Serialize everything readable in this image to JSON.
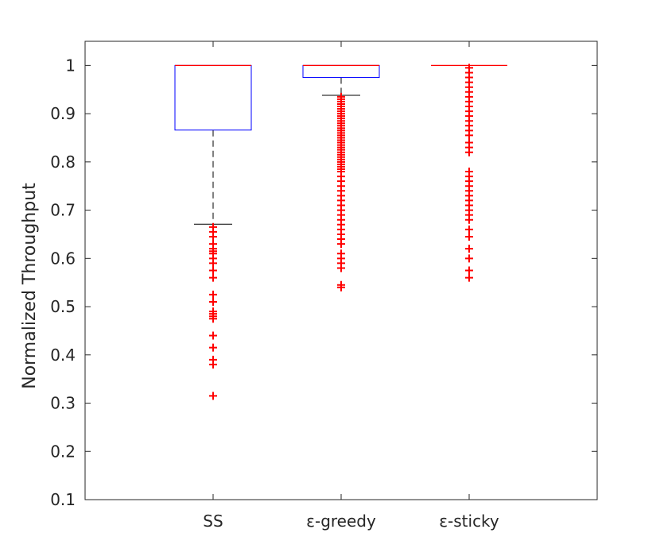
{
  "chart_data": {
    "type": "boxplot",
    "title": "",
    "xlabel": "",
    "ylabel": "Normalized Throughput",
    "ylim": [
      0.1,
      1.05
    ],
    "yticks": [
      0.1,
      0.2,
      0.3,
      0.4,
      0.5,
      0.6,
      0.7,
      0.8,
      0.9,
      1
    ],
    "ytick_labels": [
      "0.1",
      "0.2",
      "0.3",
      "0.4",
      "0.5",
      "0.6",
      "0.7",
      "0.8",
      "0.9",
      "1"
    ],
    "categories": [
      "SS",
      "ε-greedy",
      "ε-sticky"
    ],
    "grid": false,
    "colors": {
      "box": "#0000ff",
      "median": "#ff0000",
      "whisker": "#000000",
      "outlier": "#ff0000",
      "axis": "#262626"
    },
    "boxes": [
      {
        "name": "SS",
        "q1": 0.866,
        "median": 1.0,
        "q3": 1.0,
        "whisker_low": 0.671,
        "whisker_high": 1.0,
        "outliers": [
          0.665,
          0.655,
          0.645,
          0.63,
          0.62,
          0.615,
          0.61,
          0.6,
          0.59,
          0.575,
          0.56,
          0.525,
          0.51,
          0.49,
          0.485,
          0.48,
          0.475,
          0.44,
          0.415,
          0.39,
          0.38,
          0.315
        ]
      },
      {
        "name": "ε-greedy",
        "q1": 0.975,
        "median": 1.0,
        "q3": 1.0,
        "whisker_low": 0.938,
        "whisker_high": 1.0,
        "outliers": [
          0.935,
          0.93,
          0.925,
          0.92,
          0.915,
          0.91,
          0.905,
          0.9,
          0.895,
          0.89,
          0.885,
          0.88,
          0.875,
          0.87,
          0.865,
          0.86,
          0.855,
          0.85,
          0.845,
          0.84,
          0.835,
          0.83,
          0.825,
          0.82,
          0.815,
          0.81,
          0.805,
          0.8,
          0.795,
          0.79,
          0.785,
          0.78,
          0.77,
          0.76,
          0.75,
          0.74,
          0.73,
          0.72,
          0.71,
          0.7,
          0.69,
          0.68,
          0.67,
          0.66,
          0.65,
          0.64,
          0.63,
          0.61,
          0.6,
          0.59,
          0.58,
          0.545,
          0.54
        ]
      },
      {
        "name": "ε-sticky",
        "q1": 1.0,
        "median": 1.0,
        "q3": 1.0,
        "whisker_low": 1.0,
        "whisker_high": 1.0,
        "outliers": [
          0.995,
          0.985,
          0.975,
          0.965,
          0.955,
          0.945,
          0.935,
          0.925,
          0.915,
          0.905,
          0.895,
          0.885,
          0.875,
          0.865,
          0.855,
          0.84,
          0.83,
          0.82,
          0.78,
          0.77,
          0.76,
          0.75,
          0.74,
          0.73,
          0.72,
          0.71,
          0.7,
          0.69,
          0.68,
          0.66,
          0.645,
          0.62,
          0.6,
          0.575,
          0.56
        ]
      }
    ]
  }
}
